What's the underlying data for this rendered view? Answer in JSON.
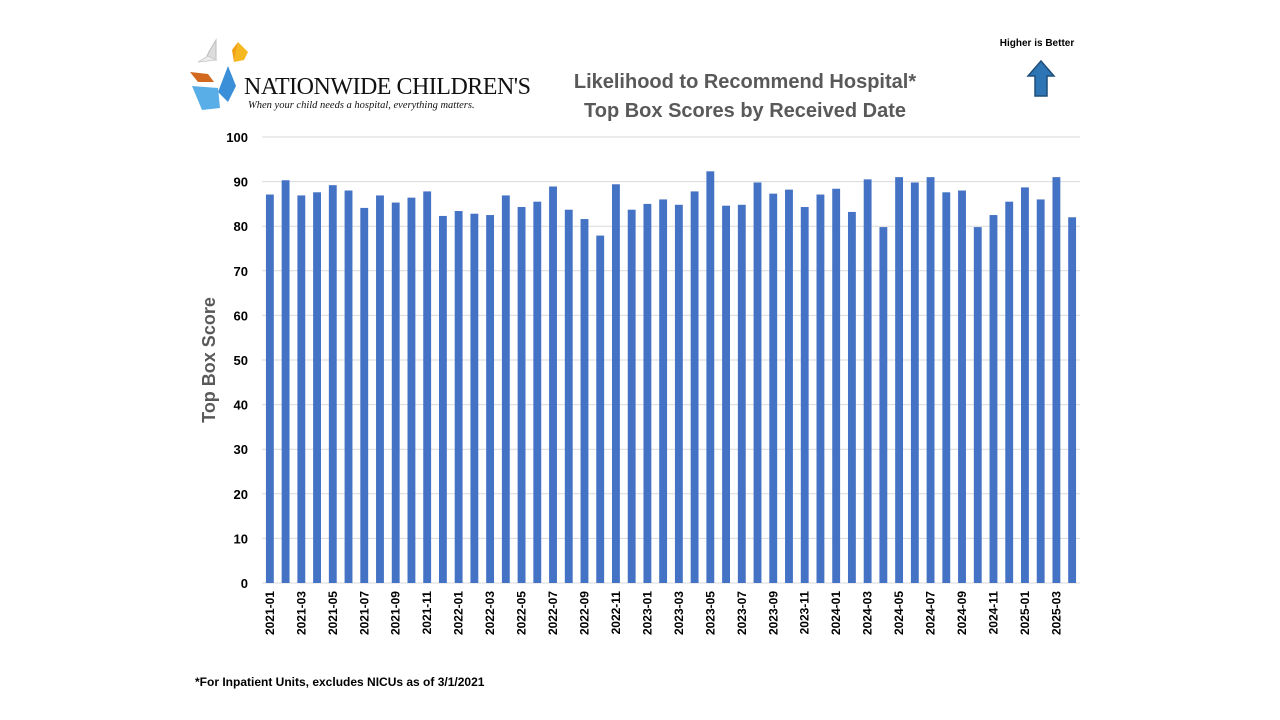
{
  "logo": {
    "name": "NATIONWIDE CHILDREN'S",
    "tagline": "When your child needs a hospital, everything matters."
  },
  "header": {
    "title_line1": "Likelihood to Recommend Hospital*",
    "title_line2": "Top Box Scores by Received Date",
    "indicator": "Higher is Better",
    "indicator_icon": "arrow-up-icon"
  },
  "footnote": "*For Inpatient Units, excludes NICUs as of 3/1/2021",
  "colors": {
    "bar": "#4472C4",
    "arrow": "#2E75B6"
  },
  "chart_data": {
    "type": "bar",
    "title": "Likelihood to Recommend Hospital* Top Box Scores by Received Date",
    "xlabel": "",
    "ylabel": "Top Box Score",
    "ylim": [
      0,
      100
    ],
    "yticks": [
      0,
      10,
      20,
      30,
      40,
      50,
      60,
      70,
      80,
      90,
      100
    ],
    "grid": true,
    "categories": [
      "2021-01",
      "2021-02",
      "2021-03",
      "2021-04",
      "2021-05",
      "2021-06",
      "2021-07",
      "2021-08",
      "2021-09",
      "2021-10",
      "2021-11",
      "2021-12",
      "2022-01",
      "2022-02",
      "2022-03",
      "2022-04",
      "2022-05",
      "2022-06",
      "2022-07",
      "2022-08",
      "2022-09",
      "2022-10",
      "2022-11",
      "2022-12",
      "2023-01",
      "2023-02",
      "2023-03",
      "2023-04",
      "2023-05",
      "2023-06",
      "2023-07",
      "2023-08",
      "2023-09",
      "2023-10",
      "2023-11",
      "2023-12",
      "2024-01",
      "2024-02",
      "2024-03",
      "2024-04",
      "2024-05",
      "2024-06",
      "2024-07",
      "2024-08",
      "2024-09",
      "2024-10",
      "2024-11",
      "2024-12",
      "2025-01",
      "2025-02",
      "2025-03",
      "2025-04"
    ],
    "values": [
      87.1,
      90.3,
      86.9,
      87.6,
      89.2,
      88.0,
      84.1,
      86.9,
      85.3,
      86.4,
      87.8,
      82.3,
      83.4,
      82.8,
      82.5,
      86.9,
      84.3,
      85.5,
      88.9,
      83.7,
      81.6,
      77.9,
      89.4,
      83.7,
      85.0,
      86.0,
      84.8,
      87.8,
      92.3,
      84.6,
      84.8,
      89.8,
      87.3,
      88.2,
      84.3,
      87.1,
      88.4,
      83.2,
      90.5,
      79.8,
      91.0,
      89.8,
      91.0,
      87.6,
      88.0,
      79.8,
      82.5,
      85.5,
      88.7,
      86.0,
      91.0,
      82.0
    ]
  }
}
